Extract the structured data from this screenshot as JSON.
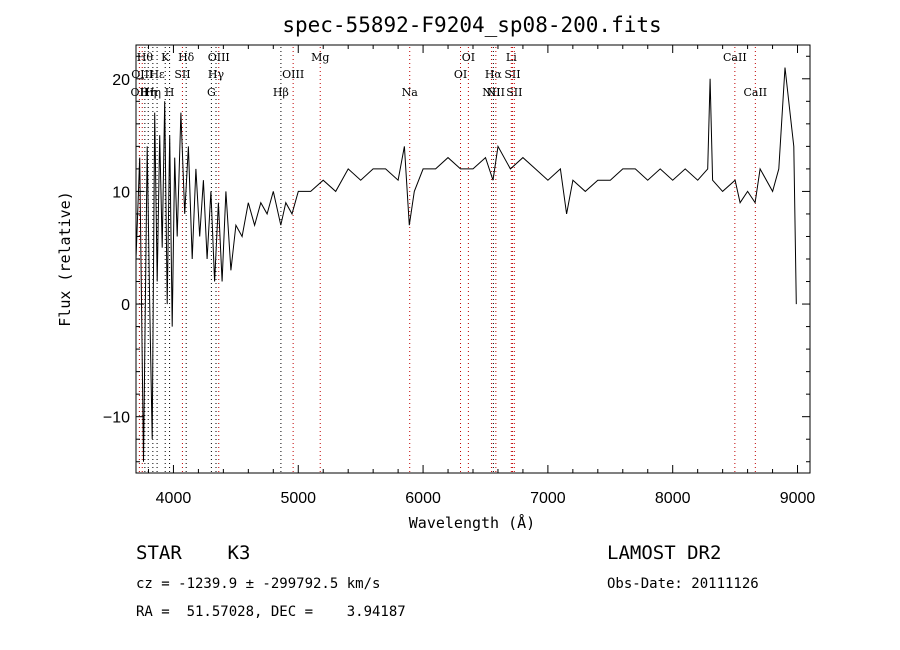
{
  "chart_data": {
    "type": "line",
    "title": "spec-55892-F9204_sp08-200.fits",
    "xlabel": "Wavelength (Å)",
    "ylabel": "Flux (relative)",
    "xlim": [
      3700,
      9100
    ],
    "ylim": [
      -15,
      23
    ],
    "xticks": [
      4000,
      5000,
      6000,
      7000,
      8000,
      9000
    ],
    "yticks": [
      -10,
      0,
      10,
      20
    ],
    "grid": false,
    "series": [
      {
        "values": [
          [
            3700,
            4
          ],
          [
            3730,
            13
          ],
          [
            3760,
            -14
          ],
          [
            3790,
            14
          ],
          [
            3810,
            0
          ],
          [
            3830,
            -12
          ],
          [
            3850,
            17
          ],
          [
            3870,
            2
          ],
          [
            3890,
            15
          ],
          [
            3910,
            5
          ],
          [
            3930,
            18
          ],
          [
            3950,
            0
          ],
          [
            3970,
            15
          ],
          [
            3990,
            -2
          ],
          [
            4010,
            13
          ],
          [
            4030,
            6
          ],
          [
            4060,
            17
          ],
          [
            4090,
            8
          ],
          [
            4120,
            14
          ],
          [
            4150,
            4
          ],
          [
            4180,
            12
          ],
          [
            4210,
            6
          ],
          [
            4240,
            11
          ],
          [
            4270,
            4
          ],
          [
            4300,
            10
          ],
          [
            4330,
            2
          ],
          [
            4360,
            9
          ],
          [
            4390,
            2
          ],
          [
            4420,
            10
          ],
          [
            4460,
            3
          ],
          [
            4500,
            7
          ],
          [
            4550,
            6
          ],
          [
            4600,
            9
          ],
          [
            4650,
            7
          ],
          [
            4700,
            9
          ],
          [
            4750,
            8
          ],
          [
            4800,
            10
          ],
          [
            4860,
            7
          ],
          [
            4900,
            9
          ],
          [
            4950,
            8
          ],
          [
            5000,
            10
          ],
          [
            5100,
            10
          ],
          [
            5200,
            11
          ],
          [
            5300,
            10
          ],
          [
            5400,
            12
          ],
          [
            5500,
            11
          ],
          [
            5600,
            12
          ],
          [
            5700,
            12
          ],
          [
            5800,
            11
          ],
          [
            5850,
            14
          ],
          [
            5890,
            7
          ],
          [
            5930,
            10
          ],
          [
            6000,
            12
          ],
          [
            6100,
            12
          ],
          [
            6200,
            13
          ],
          [
            6300,
            12
          ],
          [
            6400,
            12
          ],
          [
            6500,
            13
          ],
          [
            6560,
            11
          ],
          [
            6600,
            14
          ],
          [
            6700,
            12
          ],
          [
            6800,
            13
          ],
          [
            6900,
            12
          ],
          [
            7000,
            11
          ],
          [
            7100,
            12
          ],
          [
            7150,
            8
          ],
          [
            7200,
            11
          ],
          [
            7300,
            10
          ],
          [
            7400,
            11
          ],
          [
            7500,
            11
          ],
          [
            7600,
            12
          ],
          [
            7700,
            12
          ],
          [
            7800,
            11
          ],
          [
            7900,
            12
          ],
          [
            8000,
            11
          ],
          [
            8100,
            12
          ],
          [
            8200,
            11
          ],
          [
            8280,
            12
          ],
          [
            8300,
            20
          ],
          [
            8320,
            11
          ],
          [
            8400,
            10
          ],
          [
            8500,
            11
          ],
          [
            8540,
            9
          ],
          [
            8600,
            10
          ],
          [
            8660,
            9
          ],
          [
            8700,
            12
          ],
          [
            8800,
            10
          ],
          [
            8850,
            12
          ],
          [
            8900,
            21
          ],
          [
            8940,
            17
          ],
          [
            8970,
            14
          ],
          [
            8990,
            0
          ]
        ]
      }
    ],
    "reference_lines": [
      {
        "wavelength": 3727,
        "label": "OII",
        "color": "#c00000",
        "row": 3
      },
      {
        "wavelength": 3750,
        "label": "OIII",
        "color": "#c00000",
        "row": 2
      },
      {
        "wavelength": 3771,
        "label": "Hθ",
        "color": "#000000",
        "row": 1
      },
      {
        "wavelength": 3798,
        "label": "Hη",
        "color": "#000000",
        "row": 3
      },
      {
        "wavelength": 3835,
        "label": "Hη",
        "color": "#000000",
        "row": 3
      },
      {
        "wavelength": 3869,
        "label": "Hε",
        "color": "#000000",
        "row": 2
      },
      {
        "wavelength": 3934,
        "label": "K",
        "color": "#000000",
        "row": 1
      },
      {
        "wavelength": 3969,
        "label": "H",
        "color": "#000000",
        "row": 3
      },
      {
        "wavelength": 4072,
        "label": "SII",
        "color": "#c00000",
        "row": 2
      },
      {
        "wavelength": 4102,
        "label": "Hδ",
        "color": "#000000",
        "row": 1
      },
      {
        "wavelength": 4304,
        "label": "G",
        "color": "#000000",
        "row": 3
      },
      {
        "wavelength": 4341,
        "label": "Hγ",
        "color": "#000000",
        "row": 2
      },
      {
        "wavelength": 4363,
        "label": "OIII",
        "color": "#c00000",
        "row": 1
      },
      {
        "wavelength": 4861,
        "label": "Hβ",
        "color": "#000000",
        "row": 3
      },
      {
        "wavelength": 4959,
        "label": "OIII",
        "color": "#c00000",
        "row": 2
      },
      {
        "wavelength": 5176,
        "label": "Mg",
        "color": "#c00000",
        "row": 1
      },
      {
        "wavelength": 5893,
        "label": "Na",
        "color": "#c00000",
        "row": 3
      },
      {
        "wavelength": 6300,
        "label": "OI",
        "color": "#c00000",
        "row": 2
      },
      {
        "wavelength": 6363,
        "label": "OI",
        "color": "#c00000",
        "row": 1
      },
      {
        "wavelength": 6548,
        "label": "NII",
        "color": "#c00000",
        "row": 3
      },
      {
        "wavelength": 6563,
        "label": "Hα",
        "color": "#000000",
        "row": 2
      },
      {
        "wavelength": 6583,
        "label": "NII",
        "color": "#c00000",
        "row": 3
      },
      {
        "wavelength": 6707,
        "label": "Li",
        "color": "#c00000",
        "row": 1
      },
      {
        "wavelength": 6716,
        "label": "SII",
        "color": "#c00000",
        "row": 2
      },
      {
        "wavelength": 6731,
        "label": "SII",
        "color": "#c00000",
        "row": 3
      },
      {
        "wavelength": 8498,
        "label": "CaII",
        "color": "#c00000",
        "row": 1
      },
      {
        "wavelength": 8662,
        "label": "CaII",
        "color": "#c00000",
        "row": 3
      }
    ]
  },
  "info": {
    "object_class": "STAR    K3",
    "survey": "LAMOST DR2",
    "velocity": "cz = -1239.9 ± -299792.5 km/s",
    "obs_date": "Obs-Date: 20111126",
    "coords": "RA =  51.57028, DEC =    3.94187"
  }
}
